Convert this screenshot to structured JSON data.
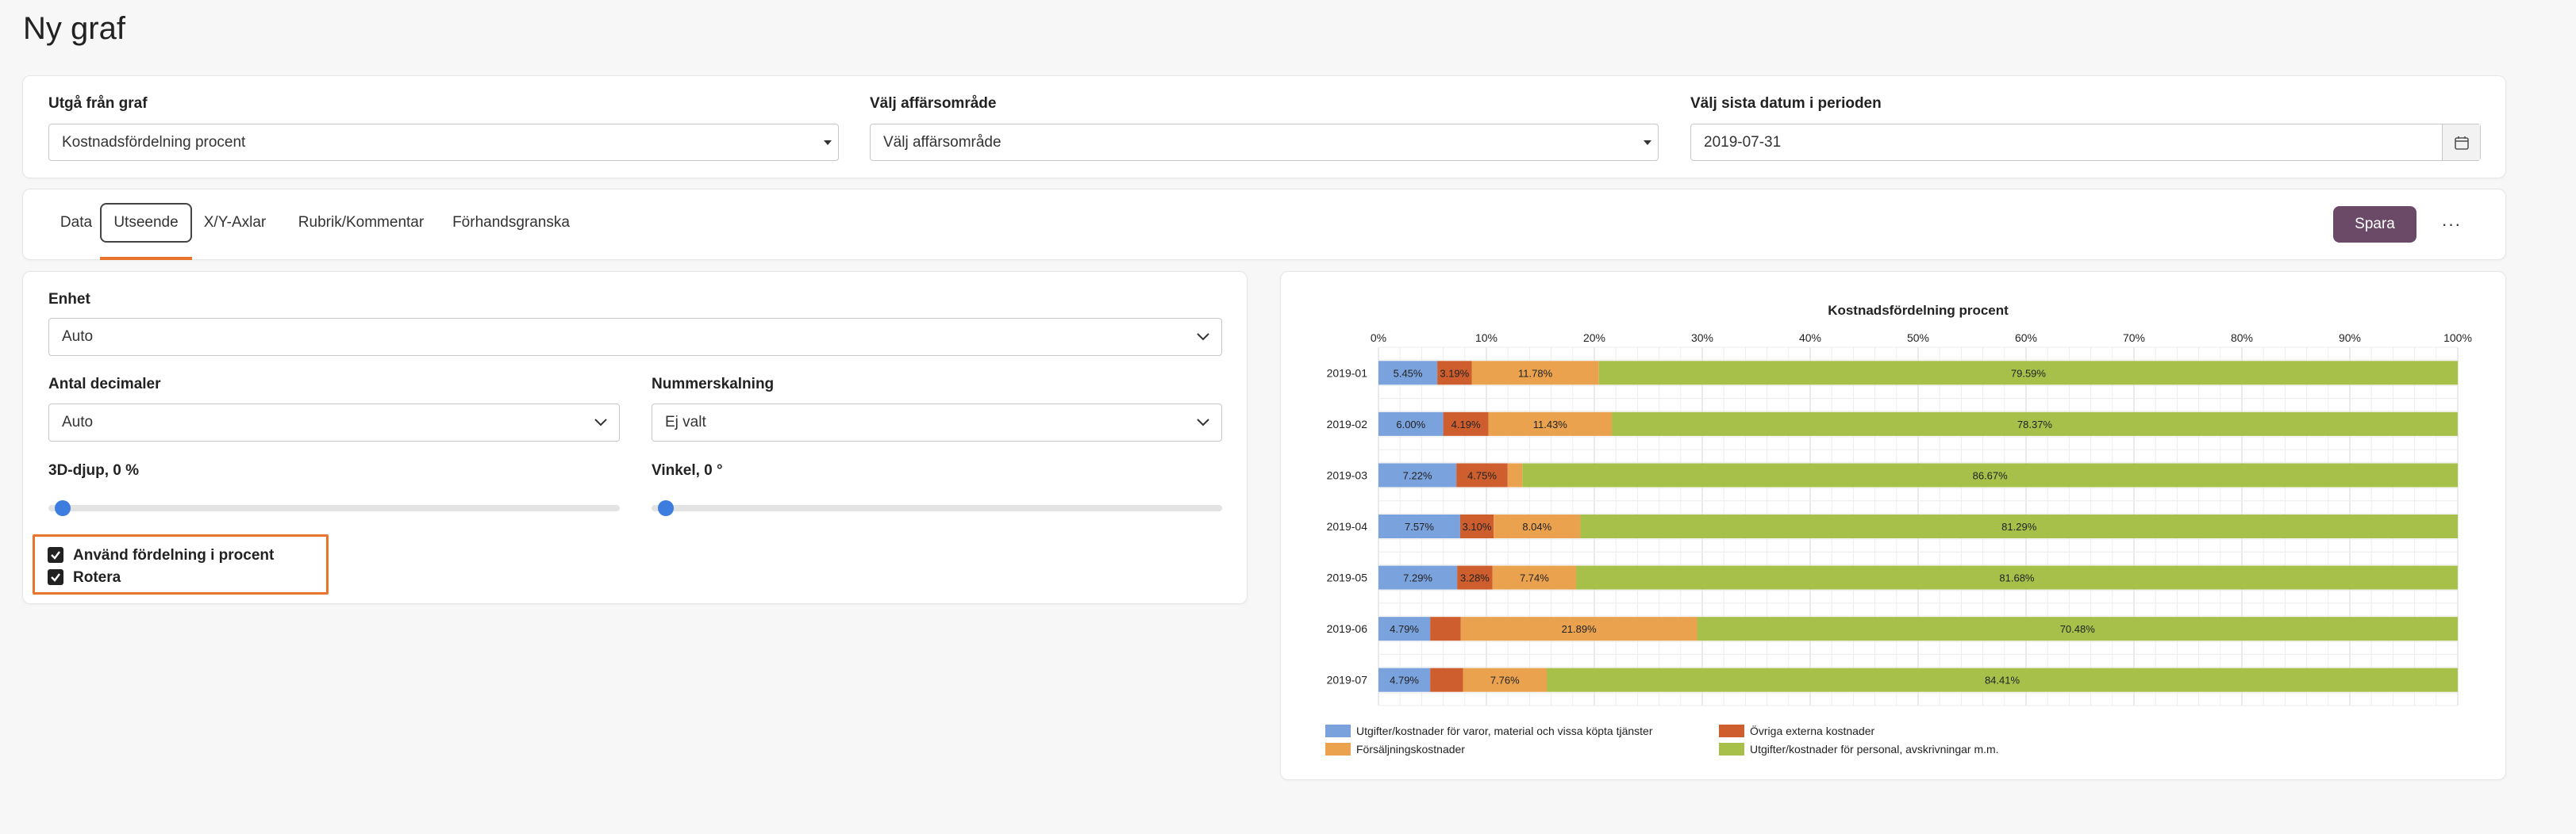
{
  "page": {
    "title": "Ny graf"
  },
  "filters": {
    "base_graph": {
      "label": "Utgå från graf",
      "value": "Kostnadsfördelning procent"
    },
    "business_area": {
      "label": "Välj affärsområde",
      "value": "Välj affärsområde"
    },
    "last_date": {
      "label": "Välj sista datum i perioden",
      "value": "2019-07-31"
    }
  },
  "tabs": [
    "Data",
    "Utseende",
    "X/Y-Axlar",
    "Rubrik/Kommentar",
    "Förhandsgranska"
  ],
  "active_tab": "Utseende",
  "toolbar": {
    "save_label": "Spara",
    "more_label": "···"
  },
  "settings": {
    "unit": {
      "label": "Enhet",
      "value": "Auto"
    },
    "decimals": {
      "label": "Antal decimaler",
      "value": "Auto"
    },
    "scaling": {
      "label": "Nummerskalning",
      "value": "Ej valt"
    },
    "depth": {
      "label": "3D-djup, 0 %",
      "value": 0
    },
    "angle": {
      "label": "Vinkel, 0 °",
      "value": 0
    },
    "use_percent": {
      "label": "Använd fördelning i procent",
      "checked": true
    },
    "rotate": {
      "label": "Rotera",
      "checked": true
    }
  },
  "colors": {
    "accent": "#e8742c",
    "primary": "#6b4a68",
    "slider": "#3d7de0"
  },
  "chart_data": {
    "type": "bar",
    "orientation": "horizontal",
    "stacked": true,
    "percent": true,
    "title": "Kostnadsfördelning procent",
    "xlim": [
      0,
      100
    ],
    "x_ticks": [
      "0%",
      "10%",
      "20%",
      "30%",
      "40%",
      "50%",
      "60%",
      "70%",
      "80%",
      "90%",
      "100%"
    ],
    "categories": [
      "2019-01",
      "2019-02",
      "2019-03",
      "2019-04",
      "2019-05",
      "2019-06",
      "2019-07"
    ],
    "series": [
      {
        "name": "Utgifter/kostnader för varor, material och vissa köpta tjänster",
        "color": "#7aa2dc",
        "values": [
          5.45,
          6.0,
          7.22,
          7.57,
          7.29,
          4.79,
          4.79
        ],
        "labels": [
          "5.45%",
          "6.00%",
          "7.22%",
          "7.57%",
          "7.29%",
          "4.79%",
          "4.79%"
        ]
      },
      {
        "name": "Övriga externa kostnader",
        "color": "#cf5e2e",
        "values": [
          3.19,
          4.19,
          4.75,
          3.1,
          3.28,
          2.84,
          3.04
        ],
        "labels": [
          "3.19%",
          "4.19%",
          "4.75%",
          "3.10%",
          "3.28%",
          "",
          ""
        ]
      },
      {
        "name": "Försäljningskostnader",
        "color": "#eaa24f",
        "values": [
          11.78,
          11.43,
          1.36,
          8.04,
          7.74,
          21.89,
          7.76
        ],
        "labels": [
          "11.78%",
          "11.43%",
          "",
          "8.04%",
          "7.74%",
          "21.89%",
          "7.76%"
        ]
      },
      {
        "name": "Utgifter/kostnader för personal, avskrivningar m.m.",
        "color": "#a7c04a",
        "values": [
          79.59,
          78.37,
          86.67,
          81.29,
          81.68,
          70.48,
          84.41
        ],
        "labels": [
          "79.59%",
          "78.37%",
          "86.67%",
          "81.29%",
          "81.68%",
          "70.48%",
          "84.41%"
        ]
      }
    ],
    "legend_position": "bottom"
  }
}
